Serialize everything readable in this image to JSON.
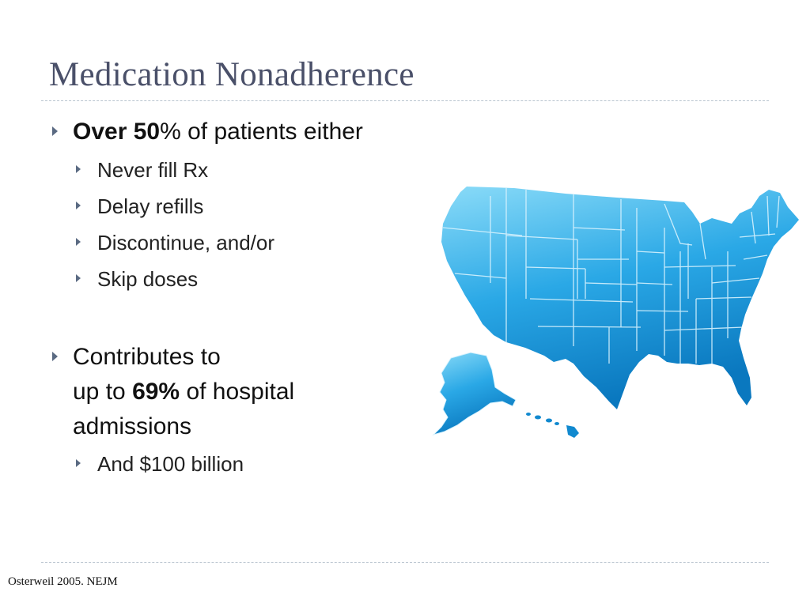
{
  "slide": {
    "title": "Medication Nonadherence",
    "bullet1": {
      "bold": "Over 50",
      "pct": "%",
      "rest": " of patients either",
      "subitems": [
        "Never fill Rx",
        "Delay refills",
        "Discontinue, and/or",
        "Skip doses"
      ]
    },
    "bullet2": {
      "line1": "Contributes to",
      "line2_pre": "up to ",
      "line2_bold": "69%",
      "line2_post": " of hospital",
      "line3": "admissions",
      "subitems": [
        "And $100 billion"
      ]
    },
    "citation": "Osterweil 2005.   NEJM"
  },
  "colors": {
    "title": "#4a5069",
    "bullet_arrow": "#5a6a82",
    "map_light": "#7fd6f7",
    "map_dark": "#0a7fc4",
    "rule": "#b9c4cf"
  },
  "icons": {
    "bullet": "triangle-right-icon",
    "map": "usa-map-icon"
  }
}
